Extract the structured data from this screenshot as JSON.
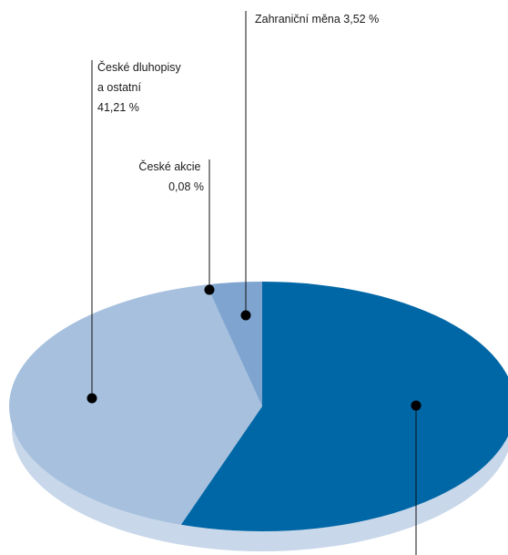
{
  "chart_data": {
    "type": "pie",
    "title": "",
    "slices": [
      {
        "label": [
          "Zahraniční měna 3,52 %"
        ],
        "value": 3.52,
        "color": "#7ea4cf"
      },
      {
        "label": [
          "České akcie",
          "0,08 %"
        ],
        "value": 0.08,
        "color": "#9bb9dc"
      },
      {
        "label": [
          "České dluhopisy",
          "a ostatní",
          "41,21 %"
        ],
        "value": 41.21,
        "color": "#a6c0de"
      },
      {
        "label": [],
        "value": 55.19,
        "color": "#0067a6"
      }
    ],
    "depth_color": "#c8d7ea",
    "legend": "none"
  }
}
